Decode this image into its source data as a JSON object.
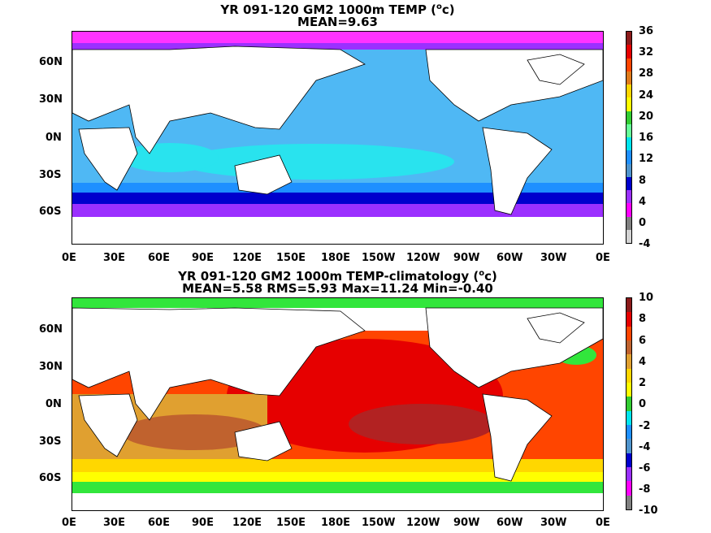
{
  "panels": [
    {
      "title_line1_pre": "YR 091-120 GM2 1000m TEMP (",
      "title_sup": "o",
      "title_line1_post": "c)",
      "title_line2": "MEAN=9.63",
      "lat_labels": [
        "60N",
        "30N",
        "0N",
        "30S",
        "60S"
      ],
      "lon_labels": [
        "0E",
        "30E",
        "60E",
        "90E",
        "120E",
        "150E",
        "180E",
        "150W",
        "120W",
        "90W",
        "60W",
        "30W",
        "0E"
      ],
      "colorbar_labels": [
        "36",
        "32",
        "28",
        "24",
        "20",
        "16",
        "12",
        "8",
        "4",
        "0",
        "-4"
      ],
      "colorbar_colors": [
        "#8b1a1a",
        "#e60000",
        "#ff4500",
        "#e07b1b",
        "#ffd700",
        "#ffff00",
        "#32cd32",
        "#66ff99",
        "#00e5ee",
        "#1e90ff",
        "#4f94cd",
        "#0000cd",
        "#9b30ff",
        "#ff00ff",
        "#808080",
        "#d3d3d3"
      ]
    },
    {
      "title_line1_pre": "YR 091-120 GM2 1000m TEMP-climatology (",
      "title_sup": "o",
      "title_line1_post": "c)",
      "title_line2": "MEAN=5.58   RMS=5.93   Max=11.24   Min=-0.40",
      "lat_labels": [
        "60N",
        "30N",
        "0N",
        "30S",
        "60S"
      ],
      "lon_labels": [
        "0E",
        "30E",
        "60E",
        "90E",
        "120E",
        "150E",
        "180E",
        "150W",
        "120W",
        "90W",
        "60W",
        "30W",
        "0E"
      ],
      "colorbar_labels": [
        "10",
        "8",
        "6",
        "4",
        "2",
        "0",
        "-2",
        "-4",
        "-6",
        "-8",
        "-10"
      ],
      "colorbar_colors": [
        "#8b1a1a",
        "#e60000",
        "#ff4500",
        "#c0622e",
        "#e0a030",
        "#ffd700",
        "#ffff00",
        "#32cd32",
        "#00e5ee",
        "#1e90ff",
        "#4f94cd",
        "#0000cd",
        "#9b30ff",
        "#ff00ff",
        "#808080"
      ]
    }
  ]
}
